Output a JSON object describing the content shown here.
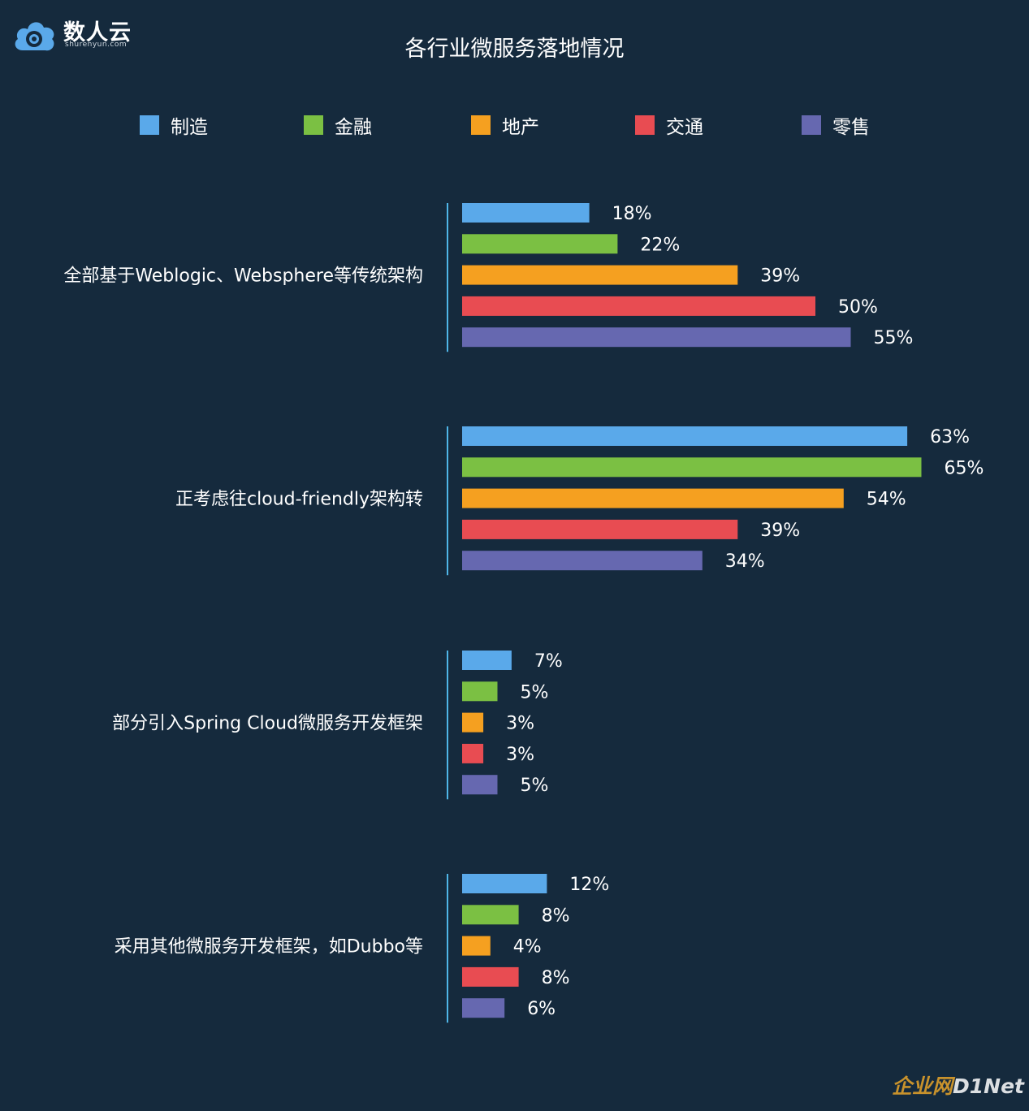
{
  "logo": {
    "text": "数人云",
    "subtext": "shurenyun.com"
  },
  "watermark": {
    "part1": "企业网",
    "part2": "D1Net"
  },
  "chart_data": {
    "type": "bar",
    "orientation": "horizontal",
    "title": "各行业微服务落地情况",
    "categories": [
      "全部基于Weblogic、Websphere等传统架构",
      "正考虑往cloud-friendly架构转",
      "部分引入Spring Cloud微服务开发框架",
      "采用其他微服务开发框架，如Dubbo等"
    ],
    "series": [
      {
        "name": "制造",
        "color": "#5aa9ea",
        "values": [
          18,
          63,
          7,
          12
        ]
      },
      {
        "name": "金融",
        "color": "#7bc043",
        "values": [
          22,
          65,
          5,
          8
        ]
      },
      {
        "name": "地产",
        "color": "#f5a020",
        "values": [
          39,
          54,
          3,
          4
        ]
      },
      {
        "name": "交通",
        "color": "#e84c52",
        "values": [
          50,
          39,
          3,
          8
        ]
      },
      {
        "name": "零售",
        "color": "#6668b0",
        "values": [
          55,
          34,
          5,
          6
        ]
      }
    ],
    "value_suffix": "%",
    "xlim": [
      0,
      65
    ],
    "legend_position": "top",
    "grid": false,
    "axis_line_color": "#4fb6e8"
  }
}
